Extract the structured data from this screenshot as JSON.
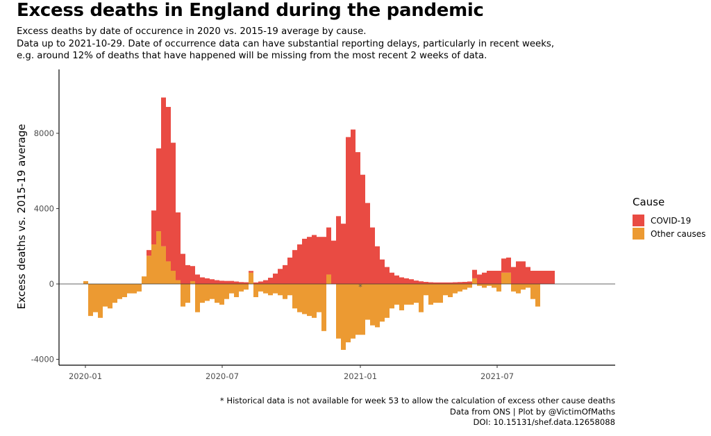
{
  "title": "Excess deaths in England during the pandemic",
  "subtitle": [
    "Excess deaths by date of occurence in 2020 vs. 2015-19 average by cause.",
    "Data up to 2021-10-29. Date of occurrence data can have substantial reporting delays, particularly in recent weeks,",
    "e.g. around 12% of deaths that have happened will be missing from the most recent 2 weeks of data."
  ],
  "caption": [
    "* Historical data is not available for week 53 to allow the calculation of excess other cause deaths",
    "Data from ONS | Plot by @VictimOfMaths",
    "DOI: 10.15131/shef.data.12658088"
  ],
  "legend": {
    "title": "Cause",
    "items": [
      {
        "label": "COVID-19",
        "color": "#E94B43"
      },
      {
        "label": "Other causes",
        "color": "#EC9A32"
      }
    ]
  },
  "chart_data": {
    "type": "bar",
    "stacked": true,
    "ylabel": "Excess deaths vs. 2015-19 average",
    "xlabel": "",
    "ylim": [
      -4300,
      10900
    ],
    "yticks": [
      -4000,
      0,
      4000,
      8000
    ],
    "xticks": [
      "2020-01",
      "2020-07",
      "2021-01",
      "2021-07"
    ],
    "week53_marker": "*",
    "series": [
      {
        "name": "COVID-19",
        "color": "#E94B43",
        "values": [
          0,
          0,
          0,
          0,
          0,
          0,
          0,
          0,
          0,
          0,
          0,
          0,
          0,
          300,
          1800,
          4400,
          7900,
          8200,
          6800,
          3600,
          1600,
          1000,
          800,
          500,
          350,
          300,
          250,
          200,
          170,
          160,
          160,
          130,
          100,
          90,
          90,
          80,
          130,
          200,
          330,
          550,
          800,
          1000,
          1400,
          1800,
          2100,
          2400,
          2500,
          2600,
          2500,
          2500,
          2500,
          2300,
          3600,
          3200,
          7800,
          8200,
          7000,
          5800,
          4300,
          3000,
          2000,
          1300,
          900,
          600,
          450,
          350,
          300,
          250,
          180,
          140,
          110,
          90,
          80,
          80,
          80,
          80,
          90,
          100,
          110,
          130,
          450,
          500,
          600,
          700,
          700,
          700,
          750,
          800,
          900,
          1200,
          1200,
          900,
          700,
          700,
          700,
          700,
          700
        ]
      },
      {
        "name": "Other causes",
        "color": "#EC9A32",
        "values": [
          150,
          -1700,
          -1500,
          -1800,
          -1200,
          -1300,
          -1000,
          -800,
          -700,
          -500,
          -500,
          -400,
          400,
          1500,
          2100,
          2800,
          2000,
          1200,
          700,
          200,
          -1200,
          -1000,
          150,
          -1500,
          -1000,
          -900,
          -800,
          -1000,
          -1100,
          -800,
          -500,
          -700,
          -400,
          -300,
          600,
          -700,
          -400,
          -500,
          -600,
          -500,
          -600,
          -800,
          -600,
          -1300,
          -1500,
          -1600,
          -1700,
          -1800,
          -1500,
          -2500,
          500,
          0,
          -2900,
          -3500,
          -3100,
          -2900,
          -2700,
          -2700,
          -1900,
          -2200,
          -2300,
          -2000,
          -1800,
          -1300,
          -1100,
          -1400,
          -1100,
          -1100,
          -1000,
          -1500,
          -600,
          -1100,
          -1000,
          -1000,
          -600,
          -700,
          -500,
          -400,
          -300,
          -200,
          300,
          -100,
          -200,
          -100,
          -200,
          -400,
          600,
          600,
          -400,
          -500,
          -300,
          -200,
          -800,
          -1200
        ]
      }
    ]
  }
}
